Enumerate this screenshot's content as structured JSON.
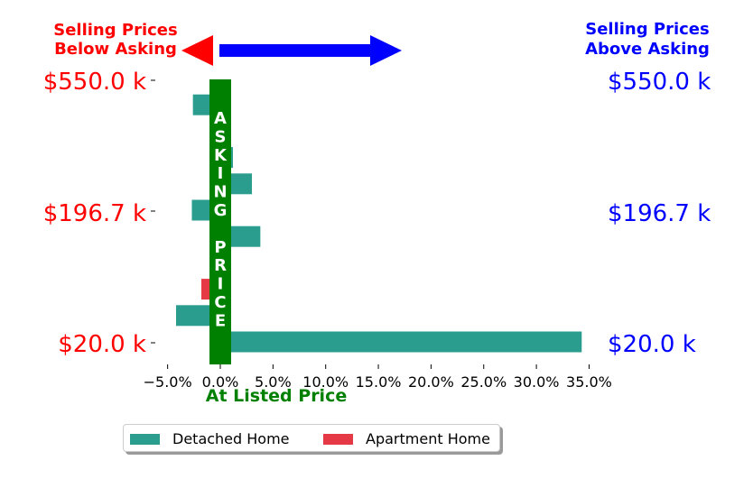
{
  "header": {
    "below_label": [
      "Selling Prices",
      "Below Asking"
    ],
    "above_label": [
      "Selling Prices",
      "Above Asking"
    ]
  },
  "center_line_label": [
    "A",
    "S",
    "K",
    "I",
    "N",
    "G",
    "",
    "P",
    "R",
    "I",
    "C",
    "E"
  ],
  "xlabel": "At Listed Price",
  "colors": {
    "detached": "#2a9d8f",
    "apartment": "#e63946",
    "asking_bar": "#008000",
    "below": "#ff0000",
    "above": "#0000ff"
  },
  "chart_data": {
    "type": "bar",
    "orientation": "horizontal",
    "y_ticks": [
      "$550.0 k",
      "$196.7 k",
      "$20.0 k"
    ],
    "y_ticks_right": [
      "$550.0 k",
      "$196.7 k",
      "$20.0 k"
    ],
    "x_ticks": [
      "−5.0%",
      "0.0%",
      "5.0%",
      "10.0%",
      "15.0%",
      "20.0%",
      "25.0%",
      "30.0%",
      "35.0%"
    ],
    "xlim": [
      -5,
      35
    ],
    "series": [
      {
        "name": "Detached Home",
        "color": "#2a9d8f",
        "values": [
          {
            "rank": 0.0,
            "value": 34.3
          },
          {
            "rank": 1.0,
            "value": -4.2
          },
          {
            "rank": 4.0,
            "value": 3.8
          },
          {
            "rank": 5.0,
            "value": -2.7
          },
          {
            "rank": 6.0,
            "value": 3.0
          },
          {
            "rank": 7.0,
            "value": 1.2
          },
          {
            "rank": 8.0,
            "value": -1.0
          },
          {
            "rank": 9.0,
            "value": -2.6
          }
        ]
      },
      {
        "name": "Apartment Home",
        "color": "#e63946",
        "values": [
          {
            "rank": 2.0,
            "value": -1.8
          }
        ]
      }
    ],
    "legend": {
      "position": "bottom",
      "entries": [
        "Detached Home",
        "Apartment Home"
      ]
    }
  }
}
